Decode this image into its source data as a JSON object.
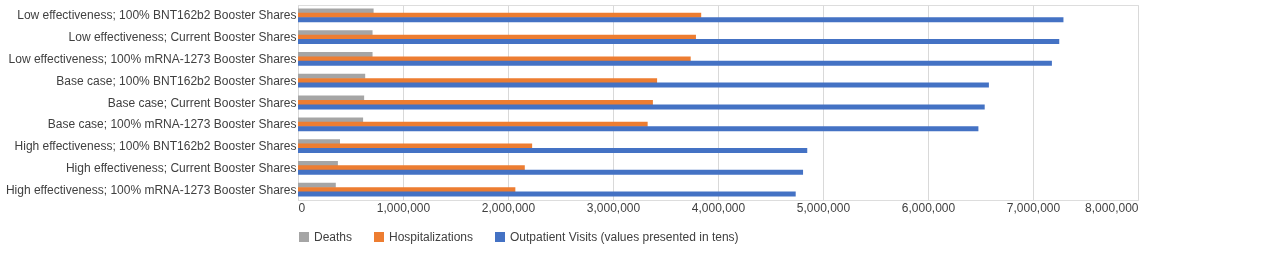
{
  "chart_data": {
    "type": "bar",
    "orientation": "horizontal",
    "categories": [
      "Low effectiveness; 100% BNT162b2 Booster Shares",
      "Low effectiveness; Current Booster Shares",
      "Low effectiveness; 100% mRNA-1273 Booster Shares",
      "Base case; 100% BNT162b2 Booster Shares",
      "Base case; Current Booster Shares",
      "Base case; 100% mRNA-1273 Booster Shares",
      "High effectiveness; 100% BNT162b2 Booster Shares",
      "High effectiveness; Current Booster Shares",
      "High effectiveness; 100% mRNA-1273 Booster Shares"
    ],
    "series": [
      {
        "name": "Deaths",
        "color": "#a5a5a5",
        "values": [
          720000,
          710000,
          710000,
          640000,
          630000,
          620000,
          400000,
          380000,
          360000
        ]
      },
      {
        "name": "Hospitalizations",
        "color": "#ed7d31",
        "values": [
          3840000,
          3790000,
          3740000,
          3420000,
          3380000,
          3330000,
          2230000,
          2160000,
          2070000
        ]
      },
      {
        "name": "Outpatient Visits (values presented in tens)",
        "color": "#4472c4",
        "values": [
          7290000,
          7250000,
          7180000,
          6580000,
          6540000,
          6480000,
          4850000,
          4810000,
          4740000
        ]
      }
    ],
    "xlim": [
      0,
      8000000
    ],
    "xticks": [
      {
        "value": 0,
        "label": "0"
      },
      {
        "value": 1000000,
        "label": "1,000,000"
      },
      {
        "value": 2000000,
        "label": "2,000,000"
      },
      {
        "value": 3000000,
        "label": "3,000,000"
      },
      {
        "value": 4000000,
        "label": "4,000,000"
      },
      {
        "value": 5000000,
        "label": "5,000,000"
      },
      {
        "value": 6000000,
        "label": "6,000,000"
      },
      {
        "value": 7000000,
        "label": "7,000,000"
      },
      {
        "value": 8000000,
        "label": "8,000,000"
      }
    ],
    "grid": "x",
    "legend": "bottom"
  }
}
